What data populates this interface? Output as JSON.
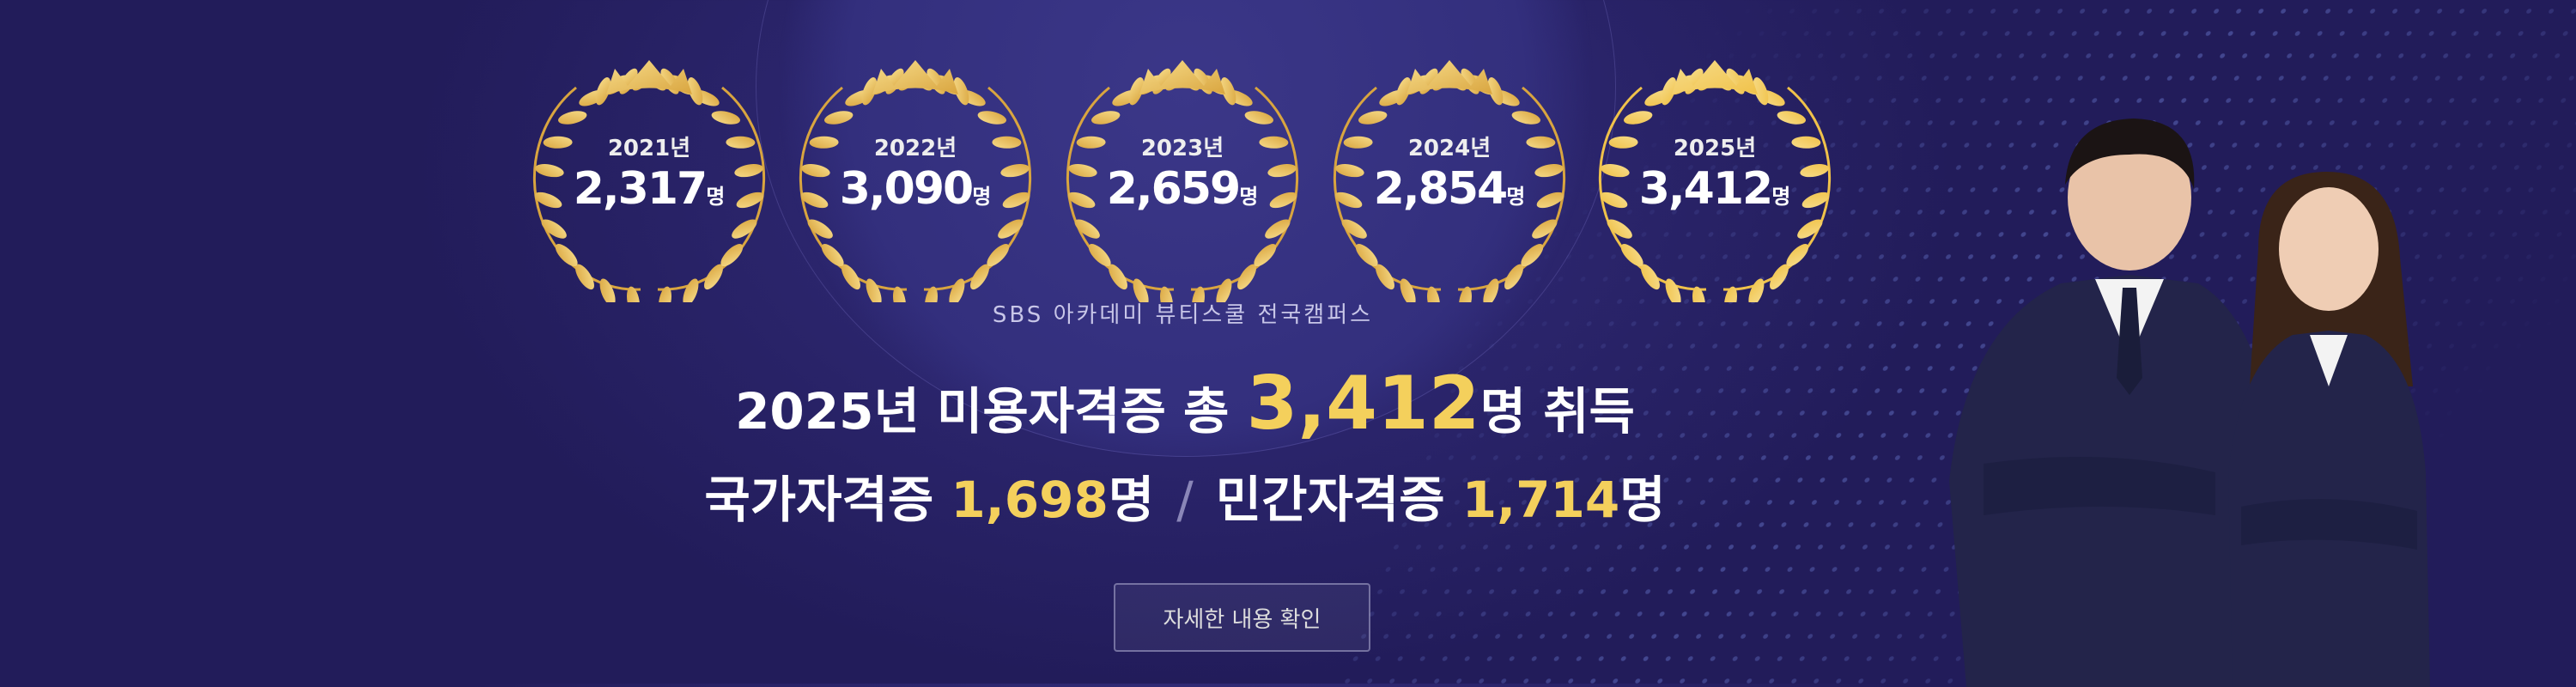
{
  "awards": [
    {
      "year": "2021년",
      "count": "2,317",
      "unit": "명"
    },
    {
      "year": "2022년",
      "count": "3,090",
      "unit": "명"
    },
    {
      "year": "2023년",
      "count": "2,659",
      "unit": "명"
    },
    {
      "year": "2024년",
      "count": "2,854",
      "unit": "명"
    },
    {
      "year": "2025년",
      "count": "3,412",
      "unit": "명"
    }
  ],
  "subtitle": "SBS 아카데미 뷰티스쿨 전국캠퍼스",
  "headline": {
    "pre": "2025년 미용자격증 총 ",
    "total": "3,412",
    "post": "명 취득"
  },
  "breakdown": {
    "national_label": "국가자격증 ",
    "national_count": "1,698",
    "national_unit": "명",
    "separator": "/",
    "private_label": "민간자격증 ",
    "private_count": "1,714",
    "private_unit": "명"
  },
  "cta": "자세한 내용 확인",
  "colors": {
    "accent": "#f4d05c",
    "gold": "#d9a53f",
    "background": "#2a246a"
  }
}
